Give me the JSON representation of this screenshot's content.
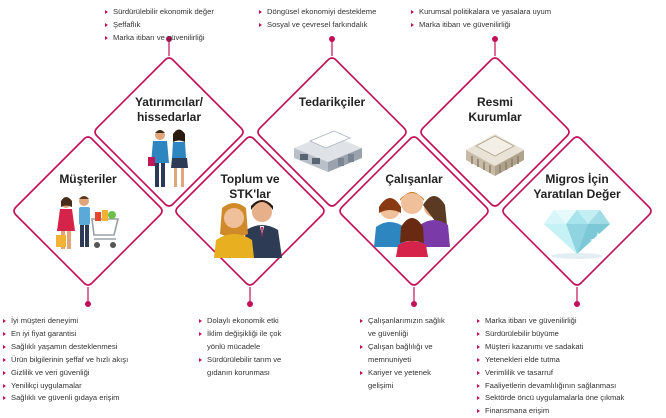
{
  "colors": {
    "accent": "#c30f5a",
    "diamond_stroke": "#c30f5a"
  },
  "nodes": [
    {
      "id": "musteriler",
      "title": "Müşteriler",
      "icon": "shoppers-with-cart-icon",
      "bullets": [
        "İyi müşteri deneyimi",
        "En iyi fiyat garantisi",
        "Sağlıklı yaşamın desteklenmesi",
        "Ürün bilgilerinin şeffaf ve hızlı akışı",
        "Gizlilik ve veri güvenliği",
        "Yenilikçi uygulamalar",
        "Sağlıklı ve güvenli gıdaya erişim"
      ]
    },
    {
      "id": "yatirimcilar",
      "title": "Yatırımcılar/\nhissedarlar",
      "icon": "business-people-icon",
      "bullets": [
        "Sürdürülebilir ekonomik değer",
        "Şeffaflık",
        "Marka itibarı ve güvenilirliği"
      ]
    },
    {
      "id": "toplum",
      "title": "Toplum ve\nSTK'lar",
      "icon": "community-people-icon",
      "bullets": [
        "Dolaylı ekonomik etki",
        "İklim değişikliği ile çok\nyönlü mücadele",
        "Sürdürülebilir tarım ve\ngıdanın korunması"
      ]
    },
    {
      "id": "tedarikciler",
      "title": "Tedarikçiler",
      "icon": "warehouse-building-icon",
      "bullets": [
        "Döngüsel ekonomiyi destekleme",
        "Sosyal ve çevresel farkındalık"
      ]
    },
    {
      "id": "calisanlar",
      "title": "Çalışanlar",
      "icon": "employees-group-icon",
      "bullets": [
        "Çalışanlarımızın sağlık\nve güvenliği",
        "Çalışan bağlılığı ve\nmemnuniyeti",
        "Kariyer ve yetenek\ngelişimi"
      ]
    },
    {
      "id": "resmi",
      "title": "Resmi\nKurumlar",
      "icon": "government-building-icon",
      "bullets": [
        "Kurumsal politikalara ve yasalara uyum",
        "Marka itibarı ve güvenilirliği"
      ]
    },
    {
      "id": "migros",
      "title": "Migros İçin\nYaratılan Değer",
      "icon": "diamond-gem-icon",
      "bullets": [
        "Marka itibarı ve güvenilirliği",
        "Sürdürülebilir büyüme",
        "Müşteri kazanımı ve sadakati",
        "Yetenekleri elde tutma",
        "Verimlilik ve tasarruf",
        "Faaliyetlerin devamlılığının sağlanması",
        "Sektörde öncü uygulamalarla öne çıkmak",
        "Finansmana erişim"
      ]
    }
  ]
}
